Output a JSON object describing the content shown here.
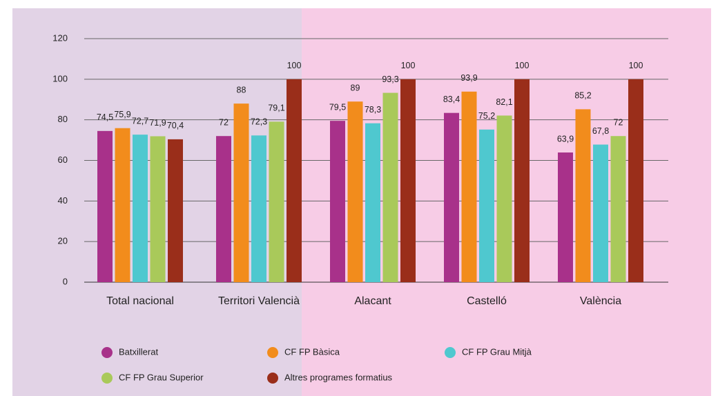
{
  "chart_data": {
    "type": "bar",
    "categories": [
      "Total nacional",
      "Territori Valencià",
      "Alacant",
      "Castelló",
      "València"
    ],
    "series": [
      {
        "name": "Batxillerat",
        "color": "#a8318a",
        "values": [
          74.5,
          72,
          79.5,
          83.4,
          63.9
        ],
        "value_labels": [
          "74,5",
          "72",
          "79,5",
          "83,4",
          "63,9"
        ]
      },
      {
        "name": "CF FP Bàsica",
        "color": "#f28c1c",
        "values": [
          75.9,
          88,
          89,
          93.9,
          85.2
        ],
        "value_labels": [
          "75,9",
          "88",
          "89",
          "93,9",
          "85,2"
        ]
      },
      {
        "name": "CF FP Grau Mitjà",
        "color": "#4fc8cf",
        "values": [
          72.7,
          72.3,
          78.3,
          75.2,
          67.8
        ],
        "value_labels": [
          "72,7",
          "72,3",
          "78,3",
          "75,2",
          "67,8"
        ]
      },
      {
        "name": "CF FP Grau Superior",
        "color": "#a9c95a",
        "values": [
          71.9,
          79.1,
          93.3,
          82.1,
          72
        ],
        "value_labels": [
          "71,9",
          "79,1",
          "93,3",
          "82,1",
          "72"
        ]
      },
      {
        "name": "Altres programes formatius",
        "color": "#9a2e1a",
        "values": [
          70.4,
          100,
          100,
          100,
          100
        ],
        "value_labels": [
          "70,4",
          "100",
          "100",
          "100",
          "100"
        ]
      }
    ],
    "ylim": [
      0,
      120
    ],
    "yticks": [
      0,
      20,
      40,
      60,
      80,
      100,
      120
    ],
    "grid": true,
    "legend": "bottom"
  }
}
